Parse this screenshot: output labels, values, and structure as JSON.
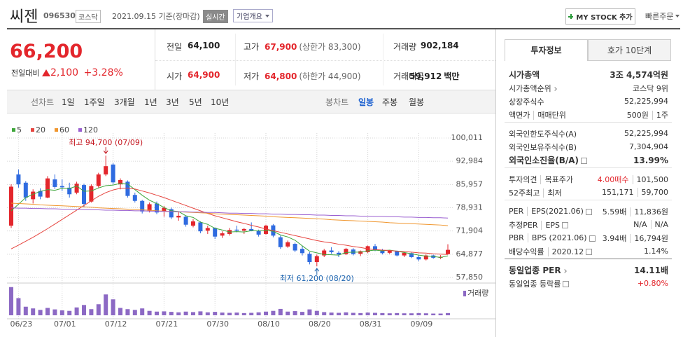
{
  "header": {
    "name": "씨젠",
    "code": "096530",
    "market": "코스닥",
    "date": "2021.09.15 기준(장마감)",
    "realtime": "실시간",
    "company_info": "기업개요",
    "my_stock": "MY STOCK 추가",
    "quick_order": "빠른주문"
  },
  "quote": {
    "price": "66,200",
    "change_label": "전일대비",
    "change": "2,100",
    "change_rate": "+3.28%",
    "cells": [
      {
        "label": "전일",
        "value": "64,100"
      },
      {
        "label": "고가",
        "value": "67,900",
        "note": "(상한가 83,300)",
        "red": true
      },
      {
        "label": "거래량",
        "value": "902,184"
      },
      {
        "label": "시가",
        "value": "64,900",
        "red": true
      },
      {
        "label": "저가",
        "value": "64,800",
        "note": "(하한가 44,900)",
        "red": true
      },
      {
        "label": "거래대금",
        "value": "59,912",
        "unit": "백만"
      }
    ]
  },
  "tabs": {
    "line_label": "선차트",
    "line": [
      "1일",
      "1주일",
      "3개월",
      "1년",
      "3년",
      "5년",
      "10년"
    ],
    "candle_label": "봉차트",
    "candle": [
      "일봉",
      "주봉",
      "월봉"
    ]
  },
  "chart_data": {
    "type": "candlestick",
    "categories": [
      null,
      "06/23",
      null,
      null,
      null,
      null,
      null,
      "07/01",
      null,
      null,
      null,
      null,
      null,
      null,
      "07/12",
      null,
      null,
      null,
      null,
      null,
      null,
      "07/21",
      null,
      null,
      null,
      null,
      null,
      null,
      "07/30",
      null,
      null,
      null,
      null,
      null,
      null,
      "08/10",
      null,
      null,
      null,
      null,
      null,
      null,
      "08/20",
      null,
      null,
      null,
      null,
      null,
      null,
      "08/31",
      null,
      null,
      null,
      null,
      null,
      null,
      "09/09",
      null,
      null,
      null,
      null
    ],
    "open": [
      73500,
      89000,
      86500,
      81500,
      84000,
      82000,
      87500,
      85500,
      85000,
      83500,
      85800,
      80800,
      85500,
      89000,
      92000,
      86000,
      86800,
      82800,
      81000,
      78000,
      80200,
      77800,
      78500,
      76000,
      76200,
      73500,
      74500,
      72000,
      72800,
      70500,
      71000,
      72300,
      72000,
      72500,
      72000,
      71000,
      73600,
      70000,
      67200,
      68000,
      66500,
      65000,
      62500,
      64500,
      66000,
      65300,
      64900,
      66300,
      65000,
      65500,
      67300,
      66000,
      65300,
      65800,
      64500,
      65200,
      64000,
      63300,
      64500,
      63800,
      64900
    ],
    "high": [
      86000,
      90500,
      87000,
      84500,
      84800,
      88500,
      89000,
      87500,
      86500,
      86800,
      86200,
      86000,
      89500,
      94700,
      92500,
      87800,
      87200,
      83500,
      81300,
      80500,
      80800,
      79500,
      79000,
      77800,
      76500,
      75500,
      74800,
      73500,
      73000,
      71800,
      72800,
      73500,
      72800,
      74500,
      72300,
      73800,
      74000,
      70500,
      69000,
      68400,
      67500,
      65500,
      64800,
      66500,
      67000,
      65800,
      66800,
      66700,
      66000,
      67500,
      68000,
      66500,
      66200,
      66000,
      65500,
      65400,
      64500,
      64800,
      64700,
      64600,
      67900
    ],
    "low": [
      72800,
      85000,
      81000,
      80200,
      81500,
      81800,
      84600,
      84000,
      82000,
      83000,
      79000,
      80500,
      85000,
      88500,
      86000,
      84500,
      82000,
      80500,
      77200,
      77500,
      77000,
      76200,
      75500,
      75000,
      73200,
      73000,
      71200,
      71000,
      69500,
      69800,
      70500,
      71500,
      71000,
      71800,
      70200,
      70800,
      70000,
      66500,
      66800,
      65500,
      64500,
      61800,
      61200,
      64000,
      65000,
      64000,
      64600,
      64500,
      64300,
      65200,
      65800,
      64800,
      64900,
      64200,
      64000,
      63700,
      62800,
      63000,
      63500,
      63400,
      64800
    ],
    "close": [
      85300,
      86000,
      82000,
      83800,
      82300,
      87800,
      85200,
      85100,
      83000,
      86200,
      80100,
      85500,
      89000,
      91500,
      86600,
      87300,
      82500,
      81000,
      77800,
      80000,
      77500,
      78900,
      76000,
      76500,
      73800,
      74800,
      71800,
      72800,
      70200,
      71200,
      72200,
      72000,
      72500,
      71900,
      70800,
      73500,
      70500,
      67000,
      68500,
      66000,
      65200,
      62500,
      64300,
      66000,
      65500,
      64800,
      66500,
      64900,
      65800,
      67300,
      66100,
      65200,
      65900,
      64500,
      65300,
      64000,
      63300,
      64500,
      63800,
      64100,
      66200
    ],
    "up_color": "#e3262c",
    "down_color": "#2f6be0",
    "ylim": [
      57850,
      100011
    ],
    "yticks": [
      {
        "value": 57850,
        "label": "57,850"
      },
      {
        "value": 64877,
        "label": "64,877"
      },
      {
        "value": 71904,
        "label": "71,904"
      },
      {
        "value": 78931,
        "label": "78,931"
      },
      {
        "value": 85957,
        "label": "85,957"
      },
      {
        "value": 92984,
        "label": "92,984"
      },
      {
        "value": 100011,
        "label": "100,011"
      }
    ],
    "grid": true,
    "moving_averages": [
      {
        "name": "5",
        "color": "#3ea63a",
        "values": [
          78000,
          80000,
          82000,
          83000,
          83900,
          84400,
          84200,
          84800,
          84700,
          85500,
          83900,
          84000,
          84900,
          85600,
          85800,
          86300,
          86100,
          84400,
          82700,
          81200,
          80200,
          79000,
          78000,
          77800,
          76500,
          76000,
          74600,
          73900,
          72700,
          72200,
          71600,
          71700,
          71600,
          72000,
          71900,
          72100,
          71800,
          70700,
          70100,
          69100,
          67400,
          65800,
          65300,
          64800,
          64700,
          64600,
          65400,
          65500,
          65500,
          65900,
          66100,
          65900,
          66100,
          65800,
          65400,
          65000,
          64600,
          64300,
          64200,
          63900,
          64400
        ]
      },
      {
        "name": "20",
        "color": "#e6453f",
        "values": [
          66500,
          67600,
          68800,
          70000,
          71300,
          72600,
          74000,
          75400,
          76800,
          78200,
          79600,
          81000,
          82400,
          83500,
          84300,
          84800,
          84900,
          84600,
          84000,
          83400,
          82700,
          82000,
          81200,
          80400,
          79600,
          78800,
          78000,
          77200,
          76500,
          75900,
          75300,
          74700,
          74200,
          73600,
          73100,
          72500,
          72000,
          71500,
          71000,
          70500,
          70000,
          69500,
          69000,
          68600,
          68300,
          67900,
          67600,
          67200,
          66900,
          66500,
          66300,
          66100,
          66000,
          65800,
          65700,
          65500,
          65300,
          65200,
          65000,
          64900,
          64800
        ]
      },
      {
        "name": "60",
        "color": "#f0962e",
        "values": [
          80300,
          80200,
          80100,
          80000,
          79800,
          79700,
          79600,
          79500,
          79400,
          79300,
          79200,
          79100,
          78900,
          78800,
          78700,
          78600,
          78500,
          78400,
          78300,
          78200,
          78000,
          77900,
          77800,
          77700,
          77600,
          77500,
          77400,
          77300,
          77100,
          77000,
          76900,
          76800,
          76700,
          76600,
          76500,
          76400,
          76200,
          76100,
          76000,
          75900,
          75800,
          75700,
          75600,
          75500,
          75300,
          75200,
          75100,
          75000,
          74900,
          74800,
          74700,
          74600,
          74400,
          74300,
          74200,
          74100,
          74000,
          73900,
          73800,
          73700,
          73500
        ]
      },
      {
        "name": "120",
        "color": "#9a5fd0",
        "values": [
          78900,
          78800,
          78800,
          78700,
          78700,
          78600,
          78600,
          78500,
          78500,
          78400,
          78400,
          78300,
          78300,
          78200,
          78200,
          78100,
          78100,
          78000,
          78000,
          77900,
          77900,
          77800,
          77800,
          77700,
          77700,
          77600,
          77600,
          77500,
          77500,
          77400,
          77300,
          77300,
          77200,
          77200,
          77100,
          77100,
          77000,
          77000,
          76900,
          76900,
          76800,
          76800,
          76700,
          76700,
          76600,
          76600,
          76500,
          76500,
          76400,
          76400,
          76300,
          76300,
          76200,
          76200,
          76100,
          76100,
          76000,
          76000,
          75900,
          75900,
          75800
        ]
      }
    ],
    "volume": {
      "name": "거래량",
      "color": "#8c69c4",
      "values": [
        11500000,
        7000000,
        3500000,
        2800000,
        2200000,
        3000000,
        2400000,
        2000000,
        1800000,
        3200000,
        4200000,
        2500000,
        4500000,
        8500000,
        6500000,
        3000000,
        2500000,
        2200000,
        2800000,
        1800000,
        1500000,
        1600000,
        1400000,
        1200000,
        1500000,
        1300000,
        1600000,
        1200000,
        1400000,
        1100000,
        1000000,
        1100000,
        900000,
        1000000,
        1200000,
        1500000,
        1800000,
        2600000,
        1500000,
        1700000,
        1400000,
        2400000,
        1800000,
        1300000,
        1100000,
        1000000,
        1200000,
        1000000,
        900000,
        1100000,
        1000000,
        900000,
        800000,
        900000,
        800000,
        800000,
        900000,
        800000,
        700000,
        700000,
        902184
      ]
    },
    "vlim": [
      0,
      12000000
    ],
    "annotations": [
      {
        "text": "최고 94,700 (07/09)",
        "index": 13,
        "at": "high",
        "color": "#c4161f"
      },
      {
        "text": "최저 61,200 (08/20)",
        "index": 42,
        "at": "low",
        "color": "#1e65b0"
      }
    ]
  },
  "info": {
    "tabs": [
      "투자정보",
      "호가 10단계"
    ],
    "groups": [
      [
        {
          "labels": [
            "시가총액"
          ],
          "values": [
            "3조 4,574억원"
          ],
          "strong": true
        },
        {
          "labels": [
            "시가총액순위"
          ],
          "icon": "more",
          "values": [
            "코스닥 9위"
          ]
        },
        {
          "labels": [
            "상장주식수"
          ],
          "values": [
            "52,225,994"
          ]
        },
        {
          "labels": [
            "액면가",
            "매매단위"
          ],
          "values": [
            "500원",
            "1주"
          ]
        }
      ],
      [
        {
          "labels": [
            "외국인한도주식수(A)"
          ],
          "values": [
            "52,225,994"
          ]
        },
        {
          "labels": [
            "외국인보유주식수(B)"
          ],
          "values": [
            "7,304,904"
          ]
        },
        {
          "labels": [
            "외국인소진율(B/A)"
          ],
          "icon": "help",
          "values": [
            "13.99%"
          ],
          "strong": true
        }
      ],
      [
        {
          "labels": [
            "투자의견",
            "목표주가"
          ],
          "values": [
            "4.00매수",
            "101,500"
          ],
          "red": 0
        },
        {
          "labels": [
            "52주최고",
            "최저"
          ],
          "values": [
            "151,171",
            "59,700"
          ]
        }
      ],
      [
        {
          "labels": [
            "PER",
            "EPS(2021.06)"
          ],
          "icon": "help",
          "values": [
            "5.59배",
            "11,836원"
          ]
        },
        {
          "labels": [
            "추정PER",
            "EPS"
          ],
          "icon": "help",
          "values": [
            "N/A",
            "N/A"
          ]
        },
        {
          "labels": [
            "PBR",
            "BPS (2021.06)"
          ],
          "icon": "help",
          "values": [
            "3.94배",
            "16,794원"
          ]
        },
        {
          "labels": [
            "배당수익률",
            "2020.12"
          ],
          "icon": "help",
          "values": [
            "1.14%"
          ]
        }
      ],
      [
        {
          "labels": [
            "동일업종 PER"
          ],
          "icon": "more",
          "values": [
            "14.11배"
          ],
          "strong": true
        },
        {
          "labels": [
            "동일업종 등락률"
          ],
          "icon": "help",
          "values": [
            "+0.80%"
          ],
          "red": 0
        }
      ]
    ]
  }
}
